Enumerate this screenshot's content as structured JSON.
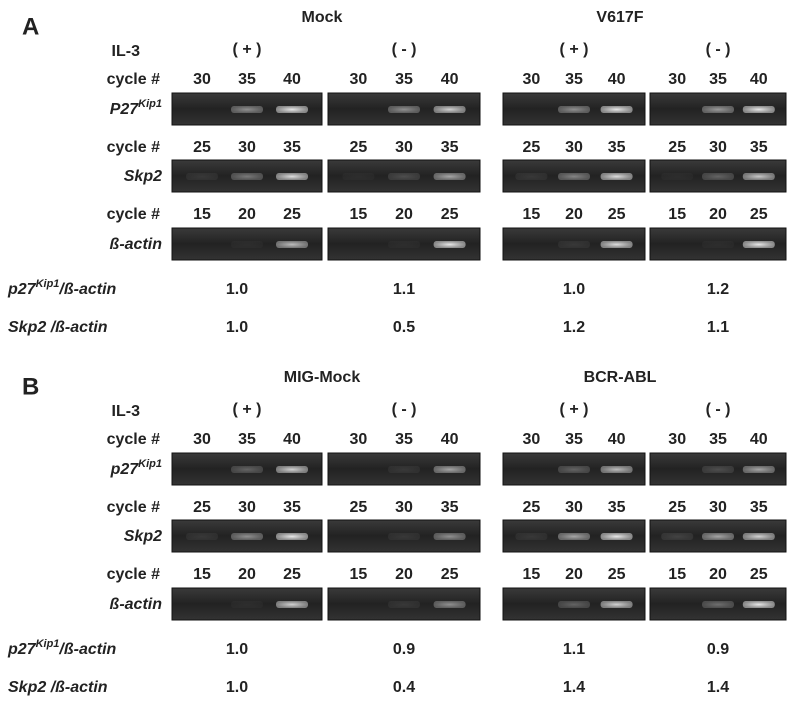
{
  "panels": [
    {
      "label": "A",
      "groups": [
        "Mock",
        "V617F"
      ],
      "il3_label": "IL-3",
      "conditions": [
        "( + )",
        "( - )",
        "( + )",
        "( - )"
      ],
      "blots": [
        {
          "cycle_label": "cycle #",
          "gene": "P27",
          "gene_sup": "Kip1",
          "cycles": [
            [
              "30",
              "35",
              "40"
            ],
            [
              "30",
              "35",
              "40"
            ],
            [
              "30",
              "35",
              "40"
            ],
            [
              "30",
              "35",
              "40"
            ]
          ]
        },
        {
          "cycle_label": "cycle #",
          "gene": "Skp2",
          "cycles": [
            [
              "25",
              "30",
              "35"
            ],
            [
              "25",
              "30",
              "35"
            ],
            [
              "25",
              "30",
              "35"
            ],
            [
              "25",
              "30",
              "35"
            ]
          ]
        },
        {
          "cycle_label": "cycle #",
          "gene": "ß-actin",
          "cycles": [
            [
              "15",
              "20",
              "25"
            ],
            [
              "15",
              "20",
              "25"
            ],
            [
              "15",
              "20",
              "25"
            ],
            [
              "15",
              "20",
              "25"
            ]
          ]
        }
      ],
      "ratios": [
        {
          "label": "p27",
          "label_sup": "Kip1",
          "label_suffix": "/ß-actin",
          "values": [
            "1.0",
            "1.1",
            "1.0",
            "1.2"
          ]
        },
        {
          "label": "Skp2 /ß-actin",
          "values": [
            "1.0",
            "0.5",
            "1.2",
            "1.1"
          ]
        }
      ]
    },
    {
      "label": "B",
      "groups": [
        "MIG-Mock",
        "BCR-ABL"
      ],
      "il3_label": "IL-3",
      "conditions": [
        "( + )",
        "( - )",
        "( + )",
        "( - )"
      ],
      "blots": [
        {
          "cycle_label": "cycle #",
          "gene": "p27",
          "gene_sup": "Kip1",
          "cycles": [
            [
              "30",
              "35",
              "40"
            ],
            [
              "30",
              "35",
              "40"
            ],
            [
              "30",
              "35",
              "40"
            ],
            [
              "30",
              "35",
              "40"
            ]
          ]
        },
        {
          "cycle_label": "cycle #",
          "gene": "Skp2",
          "cycles": [
            [
              "25",
              "30",
              "35"
            ],
            [
              "25",
              "30",
              "35"
            ],
            [
              "25",
              "30",
              "35"
            ],
            [
              "25",
              "30",
              "35"
            ]
          ]
        },
        {
          "cycle_label": "cycle #",
          "gene": "ß-actin",
          "cycles": [
            [
              "15",
              "20",
              "25"
            ],
            [
              "15",
              "20",
              "25"
            ],
            [
              "15",
              "20",
              "25"
            ],
            [
              "15",
              "20",
              "25"
            ]
          ]
        }
      ],
      "ratios": [
        {
          "label": "p27",
          "label_sup": "Kip1",
          "label_suffix": "/ß-actin",
          "values": [
            "1.0",
            "0.9",
            "1.1",
            "0.9"
          ]
        },
        {
          "label": "Skp2 /ß-actin",
          "values": [
            "1.0",
            "0.4",
            "1.4",
            "1.4"
          ]
        }
      ]
    }
  ]
}
